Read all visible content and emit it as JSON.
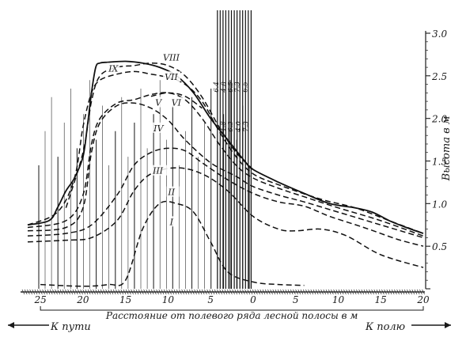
{
  "chart_data": {
    "type": "line",
    "x_axis": {
      "label": "Расстояние от полевого ряда лесной полосы в м",
      "ticks": [
        {
          "value": -25,
          "label": "25"
        },
        {
          "value": -20,
          "label": "20"
        },
        {
          "value": -15,
          "label": "15"
        },
        {
          "value": -10,
          "label": "10"
        },
        {
          "value": -5,
          "label": "5"
        },
        {
          "value": 0,
          "label": "0"
        },
        {
          "value": 5,
          "label": "5"
        },
        {
          "value": 10,
          "label": "10"
        },
        {
          "value": 15,
          "label": "15"
        },
        {
          "value": 20,
          "label": "20"
        }
      ],
      "range": [
        -26.5,
        20
      ]
    },
    "y_axis": {
      "label": "Высота в м",
      "ticks": [
        "0.5",
        "1.0",
        "1.5",
        "2.0",
        "2.5",
        "3.0"
      ],
      "range": [
        0,
        3.0
      ]
    },
    "directions": {
      "left": "К пути",
      "right": "К полю"
    },
    "grid": false,
    "legend": "labels on curves",
    "series": [
      {
        "name": "I",
        "style": "dashed",
        "label_at": [
          -9.8,
          0.75
        ],
        "x": [
          -25,
          -20,
          -17,
          -15,
          -13,
          -11,
          -9,
          -7,
          -5,
          -3,
          0,
          3,
          6
        ],
        "y": [
          0.05,
          0.03,
          0.05,
          0.1,
          0.7,
          1.0,
          1.0,
          0.9,
          0.55,
          0.2,
          0.08,
          0.05,
          0.04
        ]
      },
      {
        "name": "II",
        "style": "dashed",
        "label_at": [
          -10,
          1.1
        ],
        "x": [
          -26.5,
          -22,
          -19,
          -16,
          -14,
          -12,
          -9,
          -6,
          -3,
          0,
          3,
          5,
          8,
          11,
          15,
          20
        ],
        "y": [
          0.55,
          0.57,
          0.6,
          0.8,
          1.15,
          1.35,
          1.42,
          1.35,
          1.15,
          0.85,
          0.7,
          0.68,
          0.7,
          0.62,
          0.4,
          0.25
        ]
      },
      {
        "name": "III",
        "style": "dashed",
        "label_at": [
          -11.8,
          1.35
        ],
        "x": [
          -26.5,
          -22,
          -19,
          -16,
          -14,
          -12,
          -10,
          -8,
          -6,
          -3,
          0,
          3,
          6,
          9,
          13,
          17,
          20
        ],
        "y": [
          0.62,
          0.65,
          0.75,
          1.1,
          1.45,
          1.6,
          1.65,
          1.62,
          1.48,
          1.28,
          1.12,
          1.02,
          0.97,
          0.85,
          0.72,
          0.58,
          0.5
        ]
      },
      {
        "name": "IV",
        "style": "dashed",
        "label_at": [
          -11.7,
          1.85
        ],
        "x": [
          -26.5,
          -22,
          -20,
          -19,
          -18,
          -16,
          -14,
          -12,
          -10,
          -8,
          -5,
          -2,
          0,
          3,
          6,
          10,
          15,
          20
        ],
        "y": [
          0.68,
          0.72,
          0.95,
          1.6,
          1.95,
          2.15,
          2.18,
          2.12,
          1.98,
          1.75,
          1.48,
          1.32,
          1.2,
          1.1,
          1.02,
          0.9,
          0.75,
          0.6
        ]
      },
      {
        "name": "V",
        "style": "dashed",
        "label_at": [
          -11.5,
          2.15
        ],
        "x": [
          -26.5,
          -22,
          -20,
          -19,
          -18,
          -16,
          -14,
          -12,
          -10,
          -8,
          -6,
          -4,
          -2,
          0,
          3,
          6,
          10,
          15,
          20
        ],
        "y": [
          0.72,
          0.8,
          1.1,
          1.7,
          2.0,
          2.18,
          2.22,
          2.28,
          2.3,
          2.22,
          2.0,
          1.7,
          1.45,
          1.3,
          1.18,
          1.08,
          0.95,
          0.8,
          0.62
        ]
      },
      {
        "name": "VI",
        "style": "dashed",
        "label_at": [
          -9.6,
          2.15
        ],
        "x": [
          -12,
          -10,
          -8,
          -6
        ],
        "y": [
          2.26,
          2.3,
          2.26,
          2.12
        ]
      },
      {
        "name": "VII",
        "style": "dashed",
        "label_at": [
          -10.4,
          2.45
        ],
        "x": [
          -26.5,
          -23,
          -21,
          -20,
          -19,
          -18,
          -16,
          -14,
          -12,
          -10,
          -8,
          -6,
          -4,
          -2,
          0,
          3,
          8,
          12,
          16,
          20
        ],
        "y": [
          0.75,
          0.9,
          1.3,
          1.9,
          2.3,
          2.45,
          2.52,
          2.55,
          2.52,
          2.48,
          2.4,
          2.2,
          1.85,
          1.55,
          1.35,
          1.22,
          1.05,
          0.95,
          0.8,
          0.65
        ]
      },
      {
        "name": "VIII",
        "style": "dashed",
        "label_at": [
          -10.6,
          2.68
        ],
        "x": [
          -22,
          -20,
          -19,
          -18,
          -16,
          -14,
          -12,
          -10,
          -8,
          -6,
          -4,
          -2,
          0
        ],
        "y": [
          0.95,
          1.6,
          2.2,
          2.5,
          2.6,
          2.62,
          2.65,
          2.62,
          2.5,
          2.25,
          1.9,
          1.6,
          1.4
        ]
      },
      {
        "name": "IX",
        "style": "solid",
        "label_at": [
          -17,
          2.55
        ],
        "x": [
          -26.5,
          -24,
          -23,
          -22,
          -21,
          -20,
          -19.5,
          -19,
          -18.5,
          -18,
          -17,
          -15,
          -13,
          -11,
          -9,
          -7,
          -5,
          -3,
          -1,
          0,
          3,
          6,
          9,
          12,
          14,
          16,
          18,
          20
        ],
        "y": [
          0.75,
          0.8,
          0.95,
          1.15,
          1.3,
          1.55,
          1.9,
          2.3,
          2.6,
          2.65,
          2.66,
          2.67,
          2.65,
          2.6,
          2.5,
          2.3,
          2.0,
          1.75,
          1.5,
          1.4,
          1.25,
          1.12,
          1.0,
          0.95,
          0.9,
          0.8,
          0.72,
          0.65
        ]
      }
    ],
    "belt_labels": {
      "top": [
        "6.4",
        "4.8",
        "6.5",
        "7.3",
        "6.5"
      ],
      "bottom": [
        "4.8",
        "6.3",
        "4.0",
        "7.3"
      ]
    }
  }
}
